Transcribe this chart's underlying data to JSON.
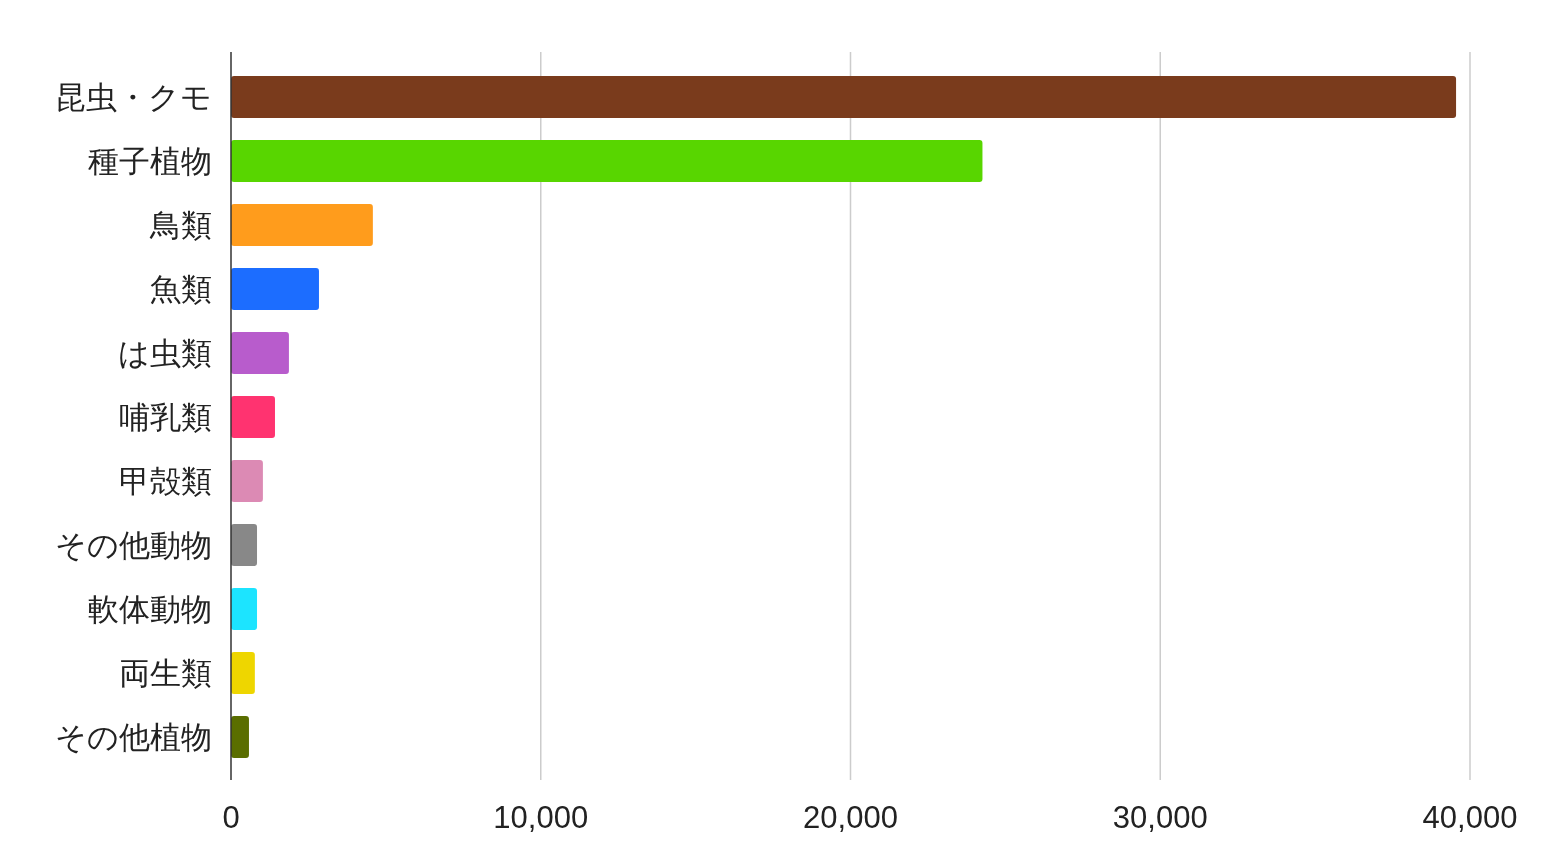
{
  "chart_data": {
    "type": "bar",
    "orientation": "horizontal",
    "categories": [
      "昆虫・クモ",
      "種子植物",
      "鳥類",
      "魚類",
      "は虫類",
      "哺乳類",
      "甲殻類",
      "その他動物",
      "軟体動物",
      "両生類",
      "その他植物"
    ],
    "values": [
      39550,
      24260,
      4580,
      2840,
      1870,
      1420,
      1030,
      840,
      840,
      770,
      580
    ],
    "colors": [
      "#7a3b1c",
      "#58d600",
      "#ff9c1c",
      "#1c6dff",
      "#b85ccc",
      "#ff3370",
      "#dc8ab4",
      "#888888",
      "#1ce4ff",
      "#eed600",
      "#5a6e00"
    ],
    "xlim": [
      0,
      40000
    ],
    "xticks": [
      0,
      {
        "value": 10000,
        "label": "10,000"
      },
      {
        "value": 20000,
        "label": "20,000"
      },
      {
        "value": 30000,
        "label": "30,000"
      },
      {
        "value": 40000,
        "label": "40,000"
      }
    ],
    "grid": "x"
  }
}
